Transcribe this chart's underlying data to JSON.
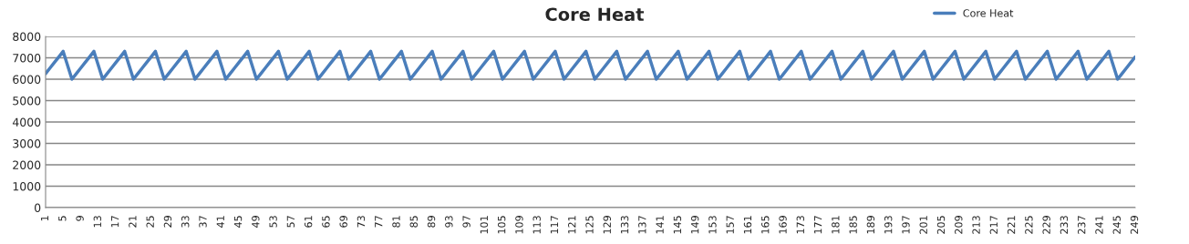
{
  "chart_data": {
    "type": "line",
    "title": "Core Heat",
    "categories": [
      "1",
      null,
      null,
      null,
      "5",
      null,
      null,
      null,
      "9",
      null,
      null,
      null,
      "13",
      null,
      null,
      null,
      "17",
      null,
      null,
      null,
      "21",
      null,
      null,
      null,
      "25",
      null,
      null,
      null,
      "29",
      null,
      null,
      null,
      "33",
      null,
      null,
      null,
      "37",
      null,
      null,
      null,
      "41",
      null,
      null,
      null,
      "45",
      null,
      null,
      null,
      "49",
      null,
      null,
      null,
      "53",
      null,
      null,
      null,
      "57",
      null,
      null,
      null,
      "61",
      null,
      null,
      null,
      "65",
      null,
      null,
      null,
      "69",
      null,
      null,
      null,
      "73",
      null,
      null,
      null,
      "77",
      null,
      null,
      null,
      "81",
      null,
      null,
      null,
      "85",
      null,
      null,
      null,
      "89",
      null,
      null,
      null,
      "93",
      null,
      null,
      null,
      "97",
      null,
      null,
      null,
      "101",
      null,
      null,
      null,
      "105",
      null,
      null,
      null,
      "109",
      null,
      null,
      null,
      "113",
      null,
      null,
      null,
      "117",
      null,
      null,
      null,
      "121",
      null,
      null,
      null,
      "125",
      null,
      null,
      null,
      "129",
      null,
      null,
      null,
      "133",
      null,
      null,
      null,
      "137",
      null,
      null,
      null,
      "141",
      null,
      null,
      null,
      "145",
      null,
      null,
      null,
      "149",
      null,
      null,
      null,
      "153",
      null,
      null,
      null,
      "157",
      null,
      null,
      null,
      "161",
      null,
      null,
      null,
      "165",
      null,
      null,
      null,
      "169",
      null,
      null,
      null,
      "173",
      null,
      null,
      null,
      "177",
      null,
      null,
      null,
      "181",
      null,
      null,
      null,
      "185",
      null,
      null,
      null,
      "189",
      null,
      null,
      null,
      "193",
      null,
      null,
      null,
      "197",
      null,
      null,
      null,
      "201",
      null,
      null,
      null,
      "205",
      null,
      null,
      null,
      "209",
      null,
      null,
      null,
      "213",
      null,
      null,
      null,
      "217",
      null,
      null,
      null,
      "221",
      null,
      null,
      null,
      "225",
      null,
      null,
      null,
      "229",
      null,
      null,
      null,
      "233",
      null,
      null,
      null,
      "237",
      null,
      null,
      null,
      "241",
      null,
      null,
      null,
      "245",
      null,
      null,
      null,
      "249"
    ],
    "series": [
      {
        "name": "Core Heat",
        "color": "#4a7ebb",
        "values": [
          6260,
          6520,
          6780,
          7040,
          7300,
          6650,
          6000,
          6260,
          6520,
          6780,
          7040,
          7300,
          6650,
          6000,
          6260,
          6520,
          6780,
          7040,
          7300,
          6650,
          6000,
          6260,
          6520,
          6780,
          7040,
          7300,
          6650,
          6000,
          6260,
          6520,
          6780,
          7040,
          7300,
          6650,
          6000,
          6260,
          6520,
          6780,
          7040,
          7300,
          6650,
          6000,
          6260,
          6520,
          6780,
          7040,
          7300,
          6650,
          6000,
          6260,
          6520,
          6780,
          7040,
          7300,
          6650,
          6000,
          6260,
          6520,
          6780,
          7040,
          7300,
          6650,
          6000,
          6260,
          6520,
          6780,
          7040,
          7300,
          6650,
          6000,
          6260,
          6520,
          6780,
          7040,
          7300,
          6650,
          6000,
          6260,
          6520,
          6780,
          7040,
          7300,
          6650,
          6000,
          6260,
          6520,
          6780,
          7040,
          7300,
          6650,
          6000,
          6260,
          6520,
          6780,
          7040,
          7300,
          6650,
          6000,
          6260,
          6520,
          6780,
          7040,
          7300,
          6650,
          6000,
          6260,
          6520,
          6780,
          7040,
          7300,
          6650,
          6000,
          6260,
          6520,
          6780,
          7040,
          7300,
          6650,
          6000,
          6260,
          6520,
          6780,
          7040,
          7300,
          6650,
          6000,
          6260,
          6520,
          6780,
          7040,
          7300,
          6650,
          6000,
          6260,
          6520,
          6780,
          7040,
          7300,
          6650,
          6000,
          6260,
          6520,
          6780,
          7040,
          7300,
          6650,
          6000,
          6260,
          6520,
          6780,
          7040,
          7300,
          6650,
          6000,
          6260,
          6520,
          6780,
          7040,
          7300,
          6650,
          6000,
          6260,
          6520,
          6780,
          7040,
          7300,
          6650,
          6000,
          6260,
          6520,
          6780,
          7040,
          7300,
          6650,
          6000,
          6260,
          6520,
          6780,
          7040,
          7300,
          6650,
          6000,
          6260,
          6520,
          6780,
          7040,
          7300,
          6650,
          6000,
          6260,
          6520,
          6780,
          7040,
          7300,
          6650,
          6000,
          6260,
          6520,
          6780,
          7040,
          7300,
          6650,
          6000,
          6260,
          6520,
          6780,
          7040,
          7300,
          6650,
          6000,
          6260,
          6520,
          6780,
          7040,
          7300,
          6650,
          6000,
          6260,
          6520,
          6780,
          7040,
          7300,
          6650,
          6000,
          6260,
          6520,
          6780,
          7040,
          7300,
          6650,
          6000,
          6260,
          6520,
          6780,
          7040,
          7300,
          6650,
          6000,
          6260,
          6520,
          6780,
          7040,
          7300,
          6650,
          6000,
          6260,
          6520,
          6780,
          7040
        ]
      }
    ],
    "ylim": [
      0,
      8000
    ],
    "yticks": [
      0,
      1000,
      2000,
      3000,
      4000,
      5000,
      6000,
      7000,
      8000
    ],
    "grid": "y",
    "legend": "top right",
    "marker": "none",
    "line_style": "solid"
  }
}
